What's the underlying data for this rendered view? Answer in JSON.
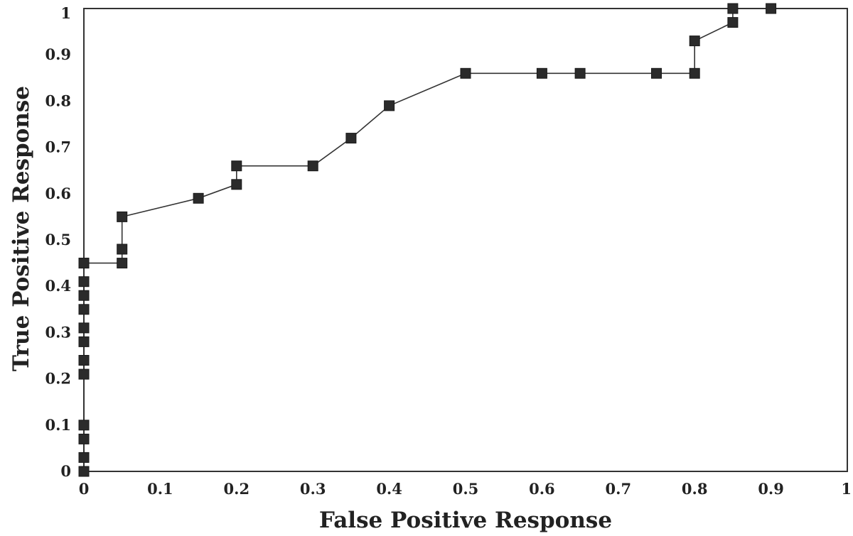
{
  "chart_data": {
    "type": "line",
    "title": "",
    "xlabel": "False Positive Response",
    "ylabel": "True Positive Response",
    "xlim": [
      0,
      1
    ],
    "ylim": [
      0,
      1
    ],
    "xticks": [
      "0",
      "0.1",
      "0.2",
      "0.3",
      "0.4",
      "0.5",
      "0.6",
      "0.7",
      "0.8",
      "0.9",
      "1"
    ],
    "yticks": [
      "0",
      "0.1",
      "0.2",
      "0.3",
      "0.4",
      "0.5",
      "0.6",
      "0.7",
      "0.8",
      "0.9",
      "1"
    ],
    "grid": false,
    "marker": "square",
    "series": [
      {
        "x": [
          0,
          0,
          0,
          0,
          0,
          0,
          0,
          0,
          0,
          0,
          0,
          0,
          0,
          0.05,
          0.05,
          0.05,
          0.15,
          0.2,
          0.2,
          0.3,
          0.35,
          0.4,
          0.5,
          0.6,
          0.65,
          0.75,
          0.8,
          0.8,
          0.85,
          0.85,
          0.9
        ],
        "y": [
          0,
          0.03,
          0.07,
          0.1,
          0.21,
          0.24,
          0.28,
          0.31,
          0.35,
          0.38,
          0.41,
          0.45,
          0.45,
          0.45,
          0.48,
          0.55,
          0.59,
          0.62,
          0.66,
          0.66,
          0.72,
          0.79,
          0.86,
          0.86,
          0.86,
          0.86,
          0.86,
          0.93,
          0.97,
          1.0,
          1.0
        ]
      }
    ]
  }
}
